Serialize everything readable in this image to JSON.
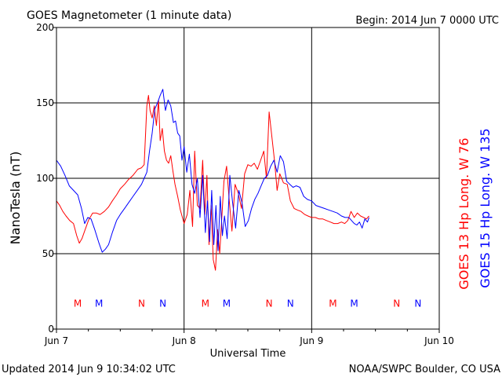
{
  "header": {
    "title": "GOES Magnetometer (1 minute data)",
    "begin": "Begin:  2014 Jun 7 0000 UTC"
  },
  "footer": {
    "updated": "Updated 2014 Jun  9 10:34:02 UTC",
    "credit": "NOAA/SWPC Boulder, CO USA"
  },
  "colors": {
    "goes13": "#ff0000",
    "goes15": "#0000ff",
    "axis": "#000000"
  },
  "chart_data": {
    "type": "line",
    "title": "GOES Magnetometer (1 minute data)",
    "xlabel": "Universal Time",
    "ylabel": "NanoTesla (nT)",
    "xlim": [
      0,
      72
    ],
    "ylim": [
      0,
      200
    ],
    "grid": true,
    "legend_placement": "right, vertical",
    "yticks": [
      {
        "value": 0,
        "label": "0"
      },
      {
        "value": 50,
        "label": "50"
      },
      {
        "value": 100,
        "label": "100"
      },
      {
        "value": 150,
        "label": "150"
      },
      {
        "value": 200,
        "label": "200"
      }
    ],
    "xticks": [
      {
        "value": 0,
        "label": "Jun 7"
      },
      {
        "value": 24,
        "label": "Jun 8"
      },
      {
        "value": 48,
        "label": "Jun 9"
      },
      {
        "value": 72,
        "label": "Jun 10"
      }
    ],
    "series": [
      {
        "name": "GOES 13 Hp  Long. W 76",
        "color": "#ff0000",
        "x": [
          0,
          0.6,
          1.2,
          1.8,
          2.5,
          3.2,
          3.8,
          4.3,
          4.8,
          5.3,
          6,
          6.8,
          7.5,
          8.2,
          9,
          9.8,
          10.5,
          11.3,
          12,
          12.8,
          13.5,
          14.4,
          15.3,
          16,
          16.5,
          17,
          17.3,
          17.6,
          18,
          18.4,
          18.8,
          19.2,
          19.5,
          19.9,
          20.3,
          20.7,
          21.1,
          21.5,
          21.9,
          22.3,
          22.8,
          23.3,
          24,
          24.6,
          25.1,
          25.6,
          26,
          26.5,
          27,
          27.5,
          27.9,
          28.3,
          28.7,
          29.1,
          29.5,
          29.9,
          30.3,
          30.7,
          31.1,
          31.5,
          32,
          32.5,
          33,
          33.6,
          34.2,
          34.8,
          35.4,
          36,
          36.6,
          37.2,
          37.8,
          38.4,
          39,
          39.5,
          40,
          40.5,
          41,
          41.5,
          42,
          42.7,
          43.4,
          44,
          44.7,
          45.3,
          46,
          46.7,
          47.3,
          48,
          48.7,
          49.4,
          50.1,
          50.8,
          51.5,
          52.2,
          52.9,
          53.6,
          54.2,
          54.8,
          55.4,
          56,
          56.6,
          57.2,
          57.8,
          58.3,
          58.8
        ],
        "y": [
          85,
          82,
          78,
          75,
          72,
          70,
          62,
          57,
          60,
          65,
          72,
          77,
          77,
          76,
          78,
          81,
          85,
          89,
          93,
          96,
          99,
          102,
          106,
          107,
          109,
          148,
          155,
          145,
          140,
          148,
          135,
          152,
          125,
          133,
          118,
          112,
          110,
          115,
          105,
          96,
          88,
          79,
          70,
          76,
          92,
          68,
          118,
          82,
          80,
          112,
          76,
          102,
          56,
          82,
          46,
          39,
          66,
          50,
          74,
          98,
          108,
          85,
          65,
          96,
          90,
          80,
          103,
          109,
          108,
          110,
          106,
          112,
          118,
          100,
          144,
          128,
          112,
          92,
          103,
          97,
          96,
          85,
          80,
          79,
          78,
          76,
          75,
          74,
          74,
          73,
          73,
          72,
          71,
          70,
          70,
          71,
          70,
          72,
          78,
          74,
          77,
          75,
          74,
          73,
          75
        ]
      },
      {
        "name": "GOES 15 Hp  Long. W 135",
        "color": "#0000ff",
        "x": [
          0,
          0.8,
          1.6,
          2.4,
          3.2,
          4,
          4.7,
          5.3,
          5.9,
          6.5,
          7.2,
          8,
          8.6,
          9.2,
          9.8,
          10.5,
          11.3,
          12,
          12.8,
          13.6,
          14.4,
          15.2,
          16,
          16.5,
          17,
          17.5,
          18,
          18.5,
          19,
          19.5,
          20,
          20.5,
          21,
          21.5,
          22,
          22.4,
          22.8,
          23.2,
          23.6,
          24,
          24.5,
          25,
          25.5,
          26,
          26.5,
          27,
          27.5,
          28,
          28.4,
          28.8,
          29.2,
          29.6,
          30,
          30.4,
          30.8,
          31.2,
          31.6,
          32.1,
          32.6,
          33.1,
          33.7,
          34.3,
          34.9,
          35.5,
          36.1,
          36.7,
          37.3,
          37.9,
          38.5,
          39.1,
          39.7,
          40.3,
          40.9,
          41.5,
          42.1,
          42.7,
          43.3,
          43.9,
          44.5,
          45.1,
          45.8,
          46.5,
          47.2,
          48,
          48.8,
          49.6,
          50.4,
          51.2,
          52,
          52.8,
          53.6,
          54.3,
          55,
          55.5,
          56,
          56.5,
          57,
          57.5,
          58,
          58.5,
          58.8
        ],
        "y": [
          112,
          108,
          102,
          95,
          92,
          89,
          80,
          70,
          74,
          73,
          66,
          57,
          51,
          53,
          56,
          64,
          72,
          76,
          80,
          84,
          88,
          92,
          96,
          100,
          104,
          118,
          130,
          146,
          150,
          155,
          159,
          145,
          152,
          148,
          137,
          138,
          130,
          128,
          112,
          121,
          104,
          116,
          96,
          90,
          100,
          74,
          102,
          64,
          85,
          58,
          92,
          56,
          82,
          52,
          88,
          62,
          75,
          60,
          102,
          85,
          67,
          92,
          84,
          68,
          72,
          80,
          86,
          90,
          95,
          100,
          102,
          108,
          112,
          104,
          115,
          111,
          98,
          96,
          94,
          95,
          94,
          88,
          86,
          85,
          82,
          81,
          80,
          79,
          78,
          77,
          75,
          74,
          74,
          72,
          70,
          69,
          71,
          67,
          73,
          71,
          74
        ]
      }
    ],
    "annotations": [
      {
        "label": "M",
        "x": 4,
        "color": "#ff0000"
      },
      {
        "label": "M",
        "x": 8,
        "color": "#0000ff"
      },
      {
        "label": "N",
        "x": 16,
        "color": "#ff0000"
      },
      {
        "label": "N",
        "x": 20,
        "color": "#0000ff"
      },
      {
        "label": "M",
        "x": 28,
        "color": "#ff0000"
      },
      {
        "label": "M",
        "x": 32,
        "color": "#0000ff"
      },
      {
        "label": "N",
        "x": 40,
        "color": "#ff0000"
      },
      {
        "label": "N",
        "x": 44,
        "color": "#0000ff"
      },
      {
        "label": "M",
        "x": 52,
        "color": "#ff0000"
      },
      {
        "label": "M",
        "x": 56,
        "color": "#0000ff"
      },
      {
        "label": "N",
        "x": 64,
        "color": "#ff0000"
      },
      {
        "label": "N",
        "x": 68,
        "color": "#0000ff"
      }
    ],
    "annotation_y": 17
  }
}
